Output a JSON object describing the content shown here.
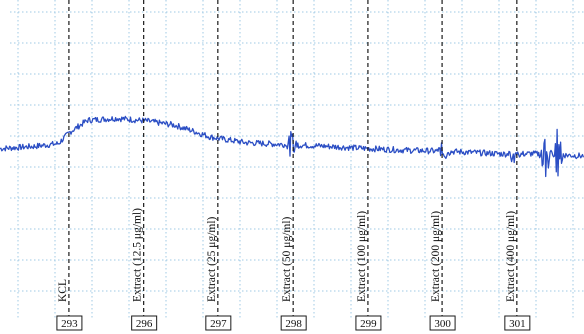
{
  "chart_data": {
    "type": "line",
    "title": "",
    "xlabel": "",
    "ylabel": "",
    "grid": true,
    "legend": "none",
    "x_range": [
      0,
      1000
    ],
    "y_range": [
      0,
      100
    ],
    "colors": {
      "trace": "#2b4ec4",
      "grid": "#9fc9e4",
      "marker": "#1a1a1a",
      "box_border": "#1a1a1a"
    },
    "series": [
      {
        "values_x": [
          0,
          60,
          100,
          120,
          150,
          200,
          250,
          300,
          330,
          360,
          380,
          420,
          480,
          550,
          620,
          700,
          780,
          850,
          880,
          910,
          940,
          1000
        ],
        "values_y": [
          55.5,
          56.2,
          57.0,
          60.5,
          64.0,
          64.6,
          63.8,
          62.5,
          60.8,
          59.0,
          58.4,
          57.3,
          56.8,
          56.3,
          55.6,
          55.0,
          54.6,
          54.0,
          53.8,
          54.0,
          53.8,
          53.3
        ],
        "noise": 0.9,
        "spikes": [
          {
            "x": 500,
            "amplitude": 4
          },
          {
            "x": 760,
            "amplitude": 3
          },
          {
            "x": 880,
            "amplitude": 3
          },
          {
            "x": 935,
            "amplitude": 10
          },
          {
            "x": 955,
            "amplitude": 8
          }
        ]
      }
    ],
    "events": [
      {
        "x": 118,
        "label": "KCL",
        "box": "293"
      },
      {
        "x": 246,
        "label": "Extract (12.5 μg/ml)",
        "box": "296"
      },
      {
        "x": 373,
        "label": "Extract (25 μg/ml)",
        "box": "297"
      },
      {
        "x": 502,
        "label": "Extract (50 μg/ml)",
        "box": "298"
      },
      {
        "x": 630,
        "label": "Extract (100 μg/ml)",
        "box": "299"
      },
      {
        "x": 757,
        "label": "Extract (200 μg/ml)",
        "box": "300"
      },
      {
        "x": 885,
        "label": "Extract (400 μg/ml)",
        "box": "301"
      }
    ]
  }
}
